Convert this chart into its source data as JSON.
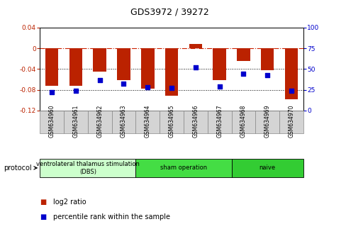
{
  "title": "GDS3972 / 39272",
  "samples": [
    "GSM634960",
    "GSM634961",
    "GSM634962",
    "GSM634963",
    "GSM634964",
    "GSM634965",
    "GSM634966",
    "GSM634967",
    "GSM634968",
    "GSM634969",
    "GSM634970"
  ],
  "log2_ratio": [
    -0.072,
    -0.072,
    -0.045,
    -0.062,
    -0.078,
    -0.092,
    0.008,
    -0.062,
    -0.025,
    -0.042,
    -0.098
  ],
  "percentile_rank": [
    22,
    24,
    37,
    32,
    28,
    27,
    52,
    29,
    44,
    43,
    24
  ],
  "bar_color": "#bb2200",
  "dot_color": "#0000cc",
  "ylim_left": [
    -0.12,
    0.04
  ],
  "ylim_right": [
    0,
    100
  ],
  "yticks_left": [
    0.04,
    0.0,
    -0.04,
    -0.08,
    -0.12
  ],
  "yticks_right": [
    100,
    75,
    50,
    25,
    0
  ],
  "hline_color": "#cc2200",
  "dotted_lines": [
    -0.04,
    -0.08
  ],
  "protocols": [
    {
      "label": "ventrolateral thalamus stimulation\n(DBS)",
      "start": 0,
      "end": 3,
      "color": "#ccffcc"
    },
    {
      "label": "sham operation",
      "start": 4,
      "end": 7,
      "color": "#44dd44"
    },
    {
      "label": "naive",
      "start": 8,
      "end": 10,
      "color": "#33cc33"
    }
  ],
  "protocol_label": "protocol",
  "legend_log2": "log2 ratio",
  "legend_pct": "percentile rank within the sample",
  "bar_width": 0.55,
  "dot_size": 22,
  "background_color": "#ffffff",
  "plot_bg_color": "#ffffff",
  "border_color": "#000000",
  "label_bg_color": "#d4d4d4",
  "title_fontsize": 9,
  "tick_fontsize": 6.5,
  "sample_fontsize": 5.5,
  "legend_fontsize": 7
}
